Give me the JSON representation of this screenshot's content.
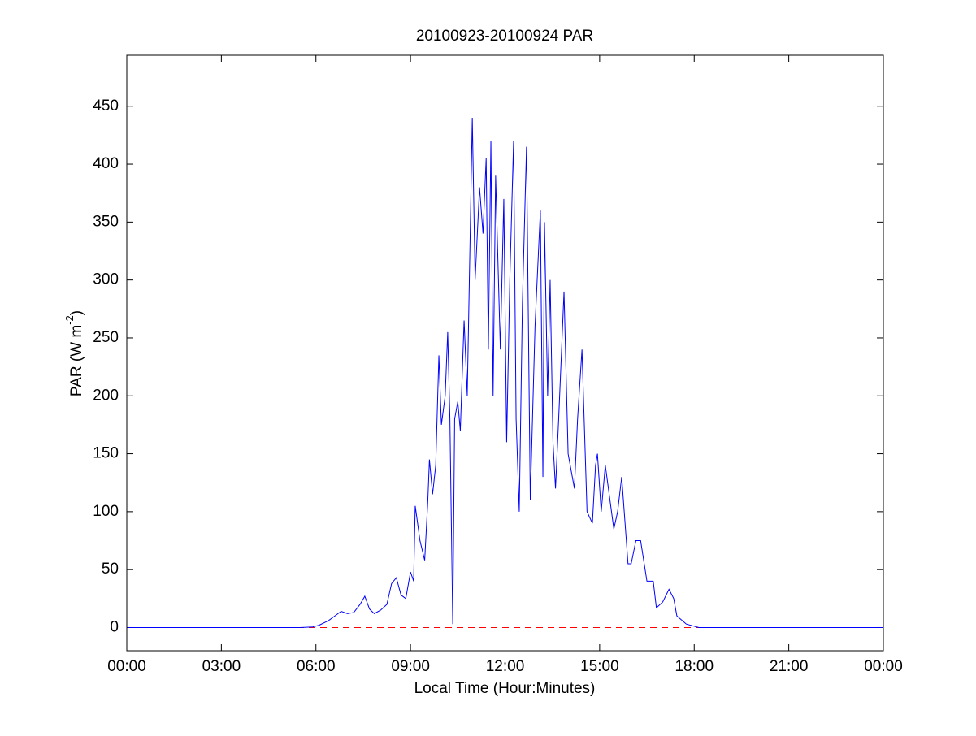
{
  "chart_data": {
    "type": "line",
    "title": "20100923-20100924 PAR",
    "x_label": "Local Time (Hour:Minutes)",
    "y_label": "PAR (W m",
    "y_label_superscript": "-2",
    "y_label_end": ")",
    "xlim": [
      0,
      24
    ],
    "xticks": [
      {
        "value": 0,
        "label": "00:00"
      },
      {
        "value": 3,
        "label": "03:00"
      },
      {
        "value": 6,
        "label": "06:00"
      },
      {
        "value": 9,
        "label": "09:00"
      },
      {
        "value": 12,
        "label": "12:00"
      },
      {
        "value": 15,
        "label": "15:00"
      },
      {
        "value": 18,
        "label": "18:00"
      },
      {
        "value": 21,
        "label": "21:00"
      },
      {
        "value": 24,
        "label": "00:00"
      }
    ],
    "ylim": [
      -20,
      494
    ],
    "yticks": [
      0,
      50,
      100,
      150,
      200,
      250,
      300,
      350,
      400,
      450
    ],
    "x": [
      0,
      5.5,
      5.9,
      6.1,
      6.4,
      6.6,
      6.8,
      7.0,
      7.2,
      7.4,
      7.55,
      7.7,
      7.85,
      8.05,
      8.25,
      8.4,
      8.55,
      8.7,
      8.85,
      9.0,
      9.1,
      9.15,
      9.3,
      9.45,
      9.55,
      9.6,
      9.7,
      9.8,
      9.9,
      9.98,
      10.1,
      10.18,
      10.25,
      10.34,
      10.4,
      10.5,
      10.58,
      10.7,
      10.8,
      10.96,
      11.05,
      11.19,
      11.3,
      11.4,
      11.47,
      11.55,
      11.62,
      11.7,
      11.85,
      11.96,
      12.05,
      12.15,
      12.27,
      12.35,
      12.45,
      12.55,
      12.68,
      12.8,
      12.95,
      13.12,
      13.2,
      13.25,
      13.35,
      13.43,
      13.52,
      13.6,
      13.7,
      13.87,
      14.0,
      14.2,
      14.3,
      14.44,
      14.6,
      14.77,
      14.87,
      14.93,
      15.05,
      15.18,
      15.45,
      15.57,
      15.7,
      15.9,
      16.0,
      16.15,
      16.3,
      16.5,
      16.7,
      16.8,
      17.0,
      17.2,
      17.35,
      17.45,
      17.75,
      18.15,
      24
    ],
    "series": [
      {
        "color": "#0000ff",
        "values": [
          0,
          0,
          0.5,
          2,
          6,
          10,
          14,
          12,
          13,
          20,
          27,
          16,
          12,
          15,
          20,
          38,
          43,
          28,
          25,
          48,
          40,
          105,
          75,
          58,
          110,
          145,
          115,
          140,
          235,
          175,
          200,
          255,
          180,
          3,
          180,
          195,
          170,
          265,
          200,
          440,
          300,
          380,
          340,
          405,
          240,
          420,
          200,
          390,
          240,
          370,
          160,
          300,
          420,
          180,
          100,
          280,
          415,
          110,
          260,
          360,
          130,
          350,
          200,
          300,
          160,
          120,
          180,
          290,
          150,
          120,
          180,
          240,
          100,
          90,
          140,
          150,
          100,
          140,
          85,
          100,
          130,
          55,
          55,
          75,
          75,
          40,
          40,
          17,
          22,
          33,
          25,
          10,
          3,
          0,
          0
        ]
      }
    ],
    "reference_line": {
      "value": 0,
      "color": "#ff0000",
      "dashed": true
    },
    "grid": false
  }
}
